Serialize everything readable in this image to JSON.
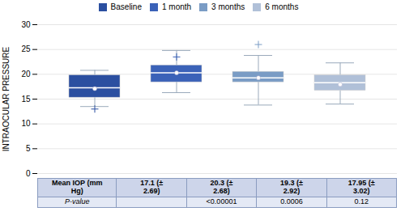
{
  "chart_data": {
    "type": "box",
    "ylabel": "INTRAOCULAR PRESSURE",
    "categories": [
      "Baseline",
      "1 month",
      "3 months",
      "6 months"
    ],
    "colors": [
      "#2B4FA0",
      "#3B62B8",
      "#7A9CC5",
      "#B0C0D8"
    ],
    "q1": [
      15.3,
      18.4,
      18.4,
      16.7
    ],
    "median": [
      17.3,
      20.3,
      19.3,
      18.3
    ],
    "q3": [
      19.8,
      21.8,
      20.5,
      19.8
    ],
    "whisker_low": [
      13.5,
      16.3,
      13.8,
      14.0
    ],
    "whisker_high": [
      20.8,
      24.8,
      23.8,
      22.3
    ],
    "fliers": [
      [
        13.0
      ],
      [
        23.5
      ],
      [
        26.0
      ],
      []
    ],
    "means": [
      17.1,
      20.3,
      19.3,
      17.95
    ],
    "ylim": [
      0,
      30
    ],
    "yticks": [
      0,
      5,
      10,
      15,
      20,
      25,
      30
    ],
    "grid": true,
    "legend": "top",
    "tick_labels": "y",
    "table": {
      "rows": [
        [
          "Mean IOP (mm\nHg)",
          "17.1 (±\n2.69)",
          "20.3 (±\n2.68)",
          "19.3 (±\n2.92)",
          "17.95 (±\n3.02)"
        ],
        [
          "P-value",
          null,
          "<0.00001",
          "0.0006",
          "0.12"
        ]
      ],
      "colors": [
        "#CDD5EA",
        "#E4E9F5"
      ],
      "color": "#8A9CC0"
    }
  }
}
